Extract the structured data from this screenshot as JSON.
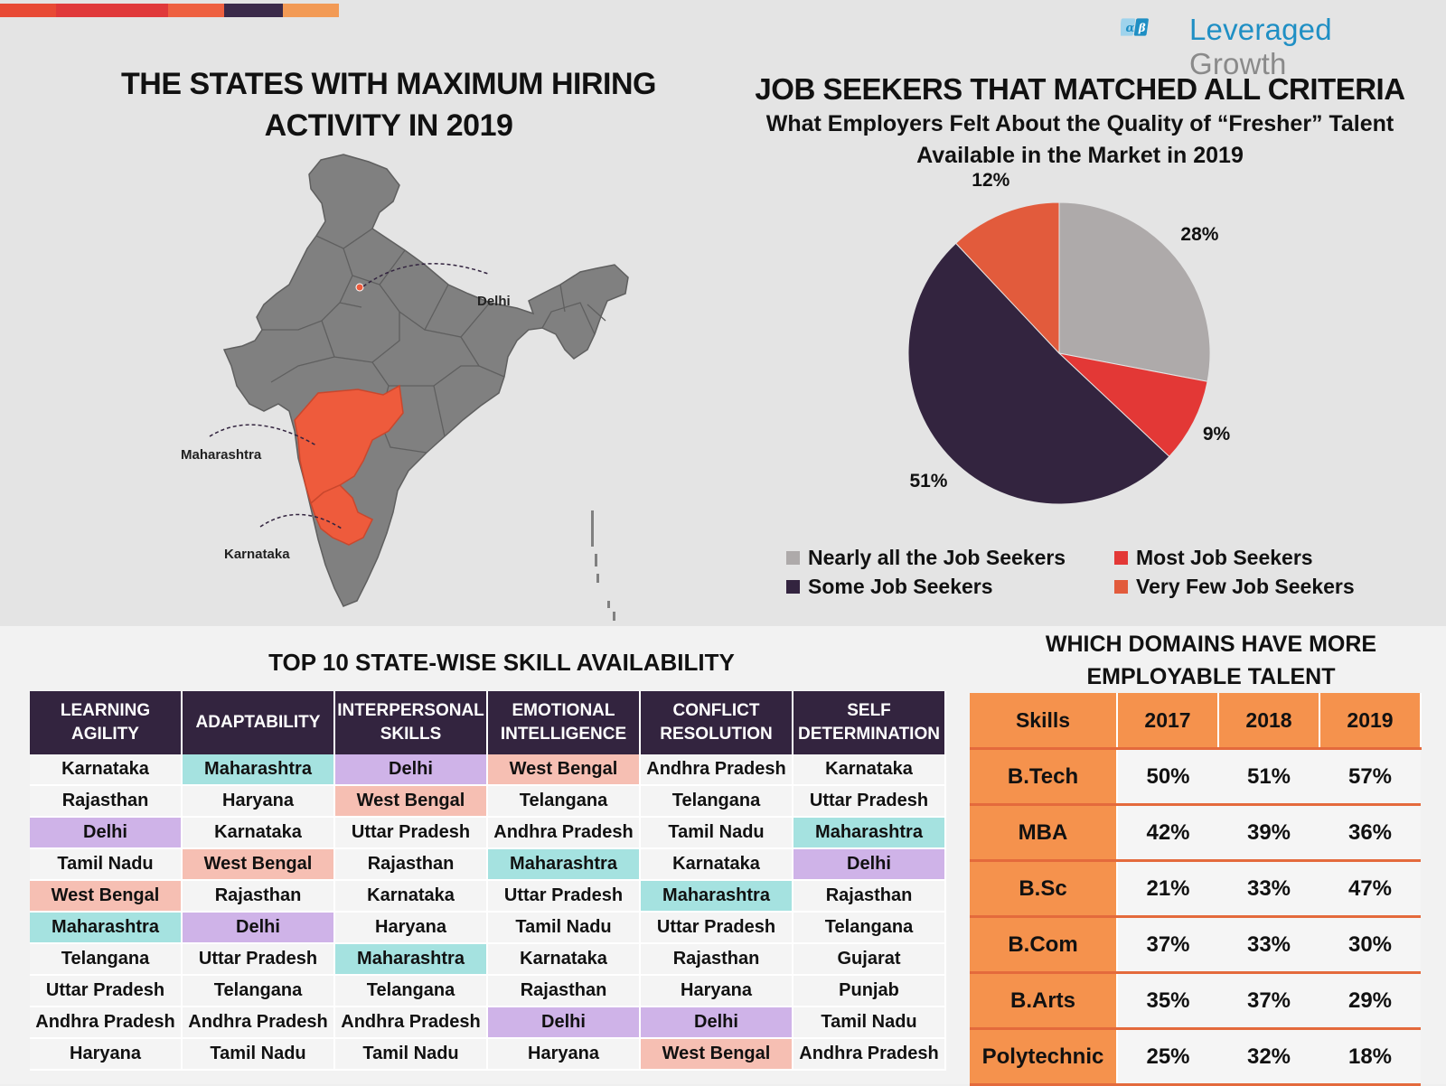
{
  "brand": {
    "logo_word1": "Leveraged",
    "logo_word2": "Growth",
    "logo_symbol_1": "α",
    "logo_symbol_2": "β",
    "stripe_colors": [
      "#e84a35",
      "#e0393a",
      "#ee6040",
      "#3b2a4a",
      "#f29a55"
    ]
  },
  "map_section": {
    "title_line1": "THE STATES WITH MAXIMUM HIRING",
    "title_line2": "ACTIVITY IN 2019",
    "labels": [
      "Delhi",
      "Maharashtra",
      "Karnataka"
    ],
    "highlighted_states": [
      "Delhi",
      "Maharashtra",
      "Karnataka"
    ],
    "base_color": "#808080",
    "highlight_color": "#ee5b3c"
  },
  "pie_section": {
    "title": "JOB SEEKERS THAT MATCHED ALL CRITERIA",
    "subtitle_line1": "What Employers Felt About the Quality of “Fresher” Talent",
    "subtitle_line2": "Available in the Market in 2019"
  },
  "chart_data": [
    {
      "type": "pie",
      "slices": [
        {
          "label": "Nearly all the Job Seekers",
          "value": 28,
          "display": "28%",
          "color": "#aeaaaa"
        },
        {
          "label": "Most Job Seekers",
          "value": 9,
          "display": "9%",
          "color": "#e33836"
        },
        {
          "label": "Some Job Seekers",
          "value": 51,
          "display": "51%",
          "color": "#33243f"
        },
        {
          "label": "Very Few Job Seekers",
          "value": 12,
          "display": "12%",
          "color": "#e25b3c"
        }
      ],
      "legend_placement": "bottom"
    },
    {
      "type": "table",
      "title": "TOP 10 STATE-WISE SKILL AVAILABILITY",
      "columns": [
        {
          "header": "LEARNING AGILITY",
          "values": [
            "Karnataka",
            "Rajasthan",
            "Delhi",
            "Tamil Nadu",
            "West Bengal",
            "Maharashtra",
            "Telangana",
            "Uttar Pradesh",
            "Andhra Pradesh",
            "Haryana"
          ]
        },
        {
          "header": "ADAPTABILITY",
          "values": [
            "Maharashtra",
            "Haryana",
            "Karnataka",
            "West Bengal",
            "Rajasthan",
            "Delhi",
            "Uttar Pradesh",
            "Telangana",
            "Andhra Pradesh",
            "Tamil Nadu"
          ]
        },
        {
          "header": "INTERPERSONAL SKILLS",
          "values": [
            "Delhi",
            "West Bengal",
            "Uttar Pradesh",
            "Rajasthan",
            "Karnataka",
            "Haryana",
            "Maharashtra",
            "Telangana",
            "Andhra Pradesh",
            "Tamil Nadu"
          ]
        },
        {
          "header": "EMOTIONAL INTELLIGENCE",
          "values": [
            "West Bengal",
            "Telangana",
            "Andhra Pradesh",
            "Maharashtra",
            "Uttar Pradesh",
            "Tamil Nadu",
            "Karnataka",
            "Rajasthan",
            "Delhi",
            "Haryana"
          ]
        },
        {
          "header": "CONFLICT RESOLUTION",
          "values": [
            "Andhra Pradesh",
            "Telangana",
            "Tamil Nadu",
            "Karnataka",
            "Maharashtra",
            "Uttar Pradesh",
            "Rajasthan",
            "Haryana",
            "Delhi",
            "West Bengal"
          ]
        },
        {
          "header": "SELF DETERMINATION",
          "values": [
            "Karnataka",
            "Uttar Pradesh",
            "Maharashtra",
            "Delhi",
            "Rajasthan",
            "Telangana",
            "Gujarat",
            "Punjab",
            "Tamil Nadu",
            "Andhra Pradesh"
          ]
        }
      ],
      "highlight_colors": {
        "Maharashtra": "#a5e2e0",
        "Delhi": "#cfb3e8",
        "West Bengal": "#f6bfb3"
      }
    },
    {
      "type": "table",
      "title": "WHICH DOMAINS HAVE MORE EMPLOYABLE TALENT",
      "header": [
        "Skills",
        "2017",
        "2018",
        "2019"
      ],
      "rows": [
        [
          "B.Tech",
          "50%",
          "51%",
          "57%"
        ],
        [
          "MBA",
          "42%",
          "39%",
          "36%"
        ],
        [
          "B.Sc",
          "21%",
          "33%",
          "47%"
        ],
        [
          "B.Com",
          "37%",
          "33%",
          "30%"
        ],
        [
          "B.Arts",
          "35%",
          "37%",
          "29%"
        ],
        [
          "Polytechnic",
          "25%",
          "32%",
          "18%"
        ]
      ]
    }
  ]
}
